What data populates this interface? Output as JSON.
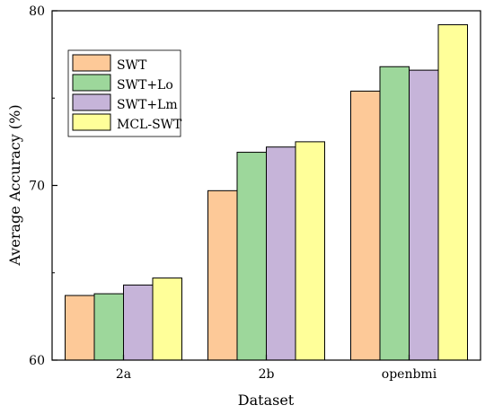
{
  "chart_data": {
    "type": "bar",
    "title": "",
    "xlabel": "Dataset",
    "ylabel": "Average Accuracy (%)",
    "categories": [
      "2a",
      "2b",
      "openbmi"
    ],
    "ylim": [
      60,
      80
    ],
    "yticks": [
      60,
      70,
      80
    ],
    "grid": false,
    "legend_position": "top-left",
    "series": [
      {
        "name": "SWT",
        "color": "#FDC998",
        "values": [
          63.7,
          69.7,
          75.4
        ]
      },
      {
        "name": "SWT+Lo",
        "color": "#9DD79B",
        "values": [
          63.8,
          71.9,
          76.8
        ]
      },
      {
        "name": "SWT+Lm",
        "color": "#C6B4D9",
        "values": [
          64.3,
          72.2,
          76.6
        ]
      },
      {
        "name": "MCL-SWT",
        "color": "#FFFF99",
        "values": [
          64.7,
          72.5,
          79.2
        ]
      }
    ]
  }
}
